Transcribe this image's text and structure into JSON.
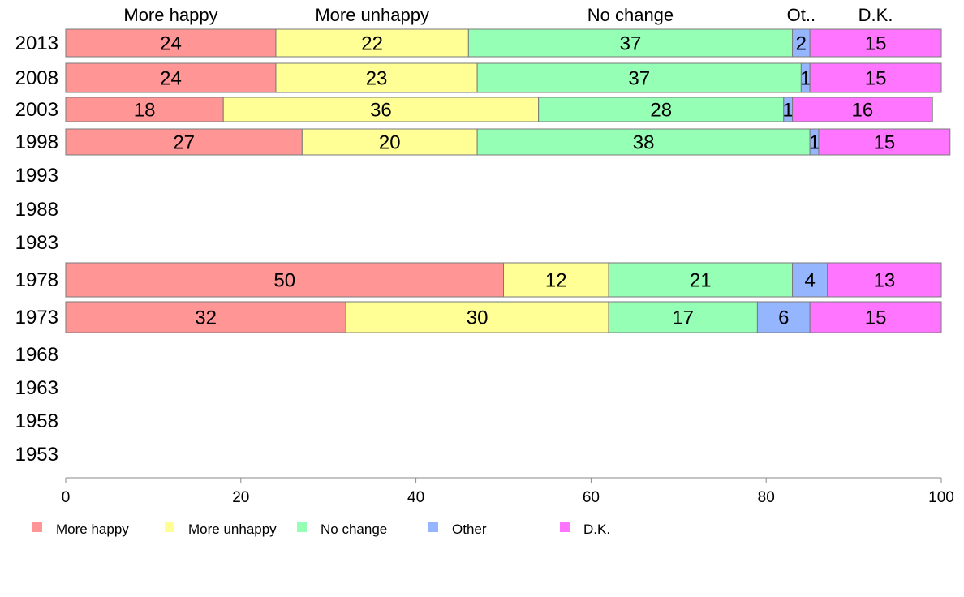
{
  "chart_data": {
    "type": "bar",
    "orientation": "horizontal",
    "stacked": true,
    "title": "",
    "xlabel": "",
    "ylabel": "",
    "xlim": [
      0,
      100
    ],
    "x_ticks": [
      0,
      20,
      40,
      60,
      80,
      100
    ],
    "grid": false,
    "legend_position": "bottom",
    "categories": [
      "2013",
      "2008",
      "2003",
      "1998",
      "1993",
      "1988",
      "1983",
      "1978",
      "1973",
      "1968",
      "1963",
      "1958",
      "1953"
    ],
    "series": [
      {
        "name": "More happy",
        "top_label": "More happy",
        "color": "#ff9595",
        "values": [
          24,
          24,
          18,
          27,
          null,
          null,
          null,
          50,
          32,
          null,
          null,
          null,
          null
        ],
        "data_labels": [
          "24",
          "24",
          "18",
          "27",
          null,
          null,
          null,
          "50",
          "32",
          null,
          null,
          null,
          null
        ]
      },
      {
        "name": "More unhappy",
        "top_label": "More unhappy",
        "color": "#ffff95",
        "values": [
          22,
          23,
          36,
          20,
          null,
          null,
          null,
          12,
          30,
          null,
          null,
          null,
          null
        ],
        "data_labels": [
          "22",
          "23",
          "36",
          "20",
          null,
          null,
          null,
          "12",
          "30",
          null,
          null,
          null,
          null
        ]
      },
      {
        "name": "No change",
        "top_label": "No change",
        "color": "#95ffb5",
        "values": [
          37,
          37,
          28,
          38,
          null,
          null,
          null,
          21,
          17,
          null,
          null,
          null,
          null
        ],
        "data_labels": [
          "37",
          "37",
          "28",
          "38",
          null,
          null,
          null,
          "21",
          "17",
          null,
          null,
          null,
          null
        ]
      },
      {
        "name": "Other",
        "top_label": "Ot..",
        "color": "#95b5ff",
        "values": [
          2,
          1,
          1,
          1,
          null,
          null,
          null,
          4,
          6,
          null,
          null,
          null,
          null
        ],
        "data_labels": [
          "2",
          "1",
          "1",
          "1",
          null,
          null,
          null,
          "4",
          "6",
          null,
          null,
          null,
          null
        ]
      },
      {
        "name": "D.K.",
        "top_label": "D.K.",
        "color": "#ff75ff",
        "values": [
          15,
          15,
          16,
          15,
          null,
          null,
          null,
          13,
          15,
          null,
          null,
          null,
          null
        ],
        "data_labels": [
          "15",
          "15",
          "16",
          "15",
          null,
          null,
          null,
          "13",
          "15",
          null,
          null,
          null,
          null
        ]
      }
    ]
  }
}
